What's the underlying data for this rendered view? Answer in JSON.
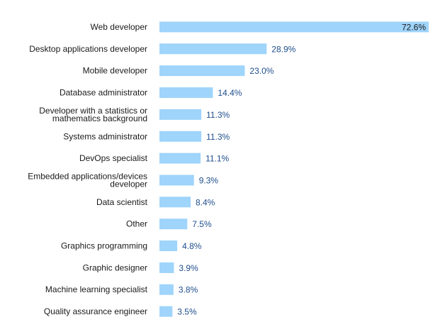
{
  "chart_data": {
    "type": "bar",
    "orientation": "horizontal",
    "categories": [
      "Web developer",
      "Desktop applications developer",
      "Mobile developer",
      "Database administrator",
      "Developer with a statistics or mathematics background",
      "Systems administrator",
      "DevOps specialist",
      "Embedded applications/devices developer",
      "Data scientist",
      "Other",
      "Graphics programming",
      "Graphic designer",
      "Machine learning specialist",
      "Quality assurance engineer"
    ],
    "category_lines": [
      [
        "Web developer"
      ],
      [
        "Desktop applications developer"
      ],
      [
        "Mobile developer"
      ],
      [
        "Database administrator"
      ],
      [
        "Developer with a statistics or",
        "mathematics background"
      ],
      [
        "Systems administrator"
      ],
      [
        "DevOps specialist"
      ],
      [
        "Embedded applications/devices",
        "developer"
      ],
      [
        "Data scientist"
      ],
      [
        "Other"
      ],
      [
        "Graphics programming"
      ],
      [
        "Graphic designer"
      ],
      [
        "Machine learning specialist"
      ],
      [
        "Quality assurance engineer"
      ]
    ],
    "values": [
      72.6,
      28.9,
      23.0,
      14.4,
      11.3,
      11.3,
      11.1,
      9.3,
      8.4,
      7.5,
      4.8,
      3.9,
      3.8,
      3.5
    ],
    "value_labels": [
      "72.6%",
      "28.9%",
      "23.0%",
      "14.4%",
      "11.3%",
      "11.3%",
      "11.1%",
      "9.3%",
      "8.4%",
      "7.5%",
      "4.8%",
      "3.9%",
      "3.8%",
      "3.5%"
    ],
    "value_unit": "%",
    "xlim": [
      0,
      72.6
    ],
    "title": "",
    "xlabel": "",
    "ylabel": "",
    "grid": false,
    "legend": "none",
    "colors": {
      "bar": "#9fd4fb",
      "category_label": "#1a1a1a",
      "value_label": "#1f4e8c",
      "value_label_inside": "#1a1a1a"
    }
  }
}
